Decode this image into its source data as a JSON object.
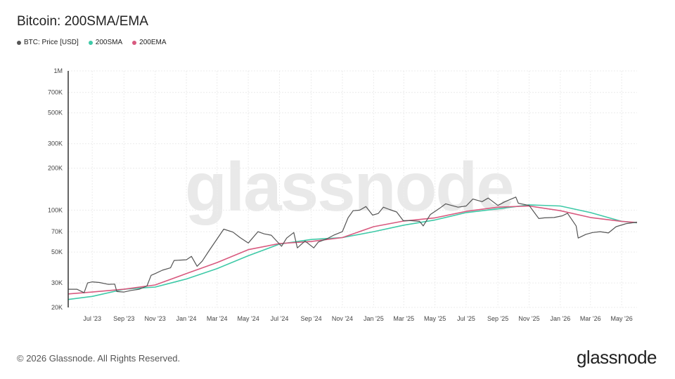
{
  "header": {
    "title": "Bitcoin: 200SMA/EMA"
  },
  "legend": [
    {
      "label": "BTC: Price [USD]",
      "color": "#555555"
    },
    {
      "label": "200SMA",
      "color": "#3ec9a7"
    },
    {
      "label": "200EMA",
      "color": "#d85a7f"
    }
  ],
  "watermark": "glassnode",
  "footer": {
    "copyright": "© 2026 Glassnode. All Rights Reserved.",
    "brand": "glassnode"
  },
  "chart_data": {
    "type": "line",
    "title": "Bitcoin: 200SMA/EMA",
    "y_scale": "log",
    "ylim": [
      20000,
      1000000
    ],
    "x_range": [
      "2023-05-15",
      "2026-05-31"
    ],
    "grid": true,
    "y_ticks": [
      {
        "value": 20000,
        "label": "20K"
      },
      {
        "value": 30000,
        "label": "30K"
      },
      {
        "value": 50000,
        "label": "50K"
      },
      {
        "value": 70000,
        "label": "70K"
      },
      {
        "value": 100000,
        "label": "100K"
      },
      {
        "value": 200000,
        "label": "200K"
      },
      {
        "value": 300000,
        "label": "300K"
      },
      {
        "value": 500000,
        "label": "500K"
      },
      {
        "value": 700000,
        "label": "700K"
      },
      {
        "value": 1000000,
        "label": "1M"
      }
    ],
    "x_ticks": [
      {
        "date": "2023-07-01",
        "label": "Jul '23"
      },
      {
        "date": "2023-09-01",
        "label": "Sep '23"
      },
      {
        "date": "2023-11-01",
        "label": "Nov '23"
      },
      {
        "date": "2024-01-01",
        "label": "Jan '24"
      },
      {
        "date": "2024-03-01",
        "label": "Mar '24"
      },
      {
        "date": "2024-05-01",
        "label": "May '24"
      },
      {
        "date": "2024-07-01",
        "label": "Jul '24"
      },
      {
        "date": "2024-09-01",
        "label": "Sep '24"
      },
      {
        "date": "2024-11-01",
        "label": "Nov '24"
      },
      {
        "date": "2025-01-01",
        "label": "Jan '25"
      },
      {
        "date": "2025-03-01",
        "label": "Mar '25"
      },
      {
        "date": "2025-05-01",
        "label": "May '25"
      },
      {
        "date": "2025-07-01",
        "label": "Jul '25"
      },
      {
        "date": "2025-09-01",
        "label": "Sep '25"
      },
      {
        "date": "2025-11-01",
        "label": "Nov '25"
      },
      {
        "date": "2026-01-01",
        "label": "Jan '26"
      },
      {
        "date": "2026-03-01",
        "label": "Mar '26"
      },
      {
        "date": "2026-05-01",
        "label": "May '26"
      }
    ],
    "series": [
      {
        "name": "BTC: Price [USD]",
        "color": "#555555",
        "points": [
          [
            "2023-05-15",
            27000
          ],
          [
            "2023-06-01",
            27000
          ],
          [
            "2023-06-15",
            25500
          ],
          [
            "2023-06-22",
            30000
          ],
          [
            "2023-07-01",
            30500
          ],
          [
            "2023-07-15",
            30200
          ],
          [
            "2023-08-01",
            29300
          ],
          [
            "2023-08-14",
            29400
          ],
          [
            "2023-08-18",
            26000
          ],
          [
            "2023-09-01",
            25800
          ],
          [
            "2023-09-15",
            26500
          ],
          [
            "2023-10-01",
            27000
          ],
          [
            "2023-10-16",
            28500
          ],
          [
            "2023-10-24",
            34000
          ],
          [
            "2023-11-01",
            35000
          ],
          [
            "2023-11-15",
            37000
          ],
          [
            "2023-12-01",
            38500
          ],
          [
            "2023-12-08",
            43500
          ],
          [
            "2024-01-01",
            44000
          ],
          [
            "2024-01-11",
            46500
          ],
          [
            "2024-01-22",
            39500
          ],
          [
            "2024-02-01",
            43000
          ],
          [
            "2024-02-15",
            51500
          ],
          [
            "2024-03-01",
            62000
          ],
          [
            "2024-03-14",
            73000
          ],
          [
            "2024-04-01",
            69500
          ],
          [
            "2024-04-15",
            63500
          ],
          [
            "2024-05-01",
            58000
          ],
          [
            "2024-05-20",
            70000
          ],
          [
            "2024-06-01",
            67500
          ],
          [
            "2024-06-15",
            66000
          ],
          [
            "2024-07-05",
            55000
          ],
          [
            "2024-07-15",
            63000
          ],
          [
            "2024-07-29",
            69000
          ],
          [
            "2024-08-05",
            53500
          ],
          [
            "2024-08-20",
            60000
          ],
          [
            "2024-09-06",
            53500
          ],
          [
            "2024-09-15",
            59000
          ],
          [
            "2024-10-01",
            62000
          ],
          [
            "2024-10-15",
            66000
          ],
          [
            "2024-11-01",
            70000
          ],
          [
            "2024-11-12",
            88000
          ],
          [
            "2024-11-22",
            99000
          ],
          [
            "2024-12-05",
            100000
          ],
          [
            "2024-12-17",
            106000
          ],
          [
            "2024-12-30",
            92000
          ],
          [
            "2025-01-10",
            94500
          ],
          [
            "2025-01-20",
            105000
          ],
          [
            "2025-02-01",
            101000
          ],
          [
            "2025-02-15",
            97000
          ],
          [
            "2025-02-28",
            84000
          ],
          [
            "2025-03-15",
            84000
          ],
          [
            "2025-04-01",
            83000
          ],
          [
            "2025-04-08",
            77000
          ],
          [
            "2025-04-22",
            93000
          ],
          [
            "2025-05-10",
            103000
          ],
          [
            "2025-05-22",
            111000
          ],
          [
            "2025-06-15",
            105000
          ],
          [
            "2025-07-01",
            107000
          ],
          [
            "2025-07-14",
            120000
          ],
          [
            "2025-08-01",
            115000
          ],
          [
            "2025-08-13",
            122000
          ],
          [
            "2025-09-01",
            108000
          ],
          [
            "2025-09-15",
            115000
          ],
          [
            "2025-10-06",
            124000
          ],
          [
            "2025-10-11",
            112000
          ],
          [
            "2025-11-01",
            108000
          ],
          [
            "2025-11-20",
            87000
          ],
          [
            "2025-12-01",
            88000
          ],
          [
            "2025-12-20",
            88500
          ],
          [
            "2026-01-05",
            91000
          ],
          [
            "2026-01-15",
            95000
          ],
          [
            "2026-02-01",
            77000
          ],
          [
            "2026-02-05",
            63000
          ],
          [
            "2026-02-20",
            67000
          ],
          [
            "2026-03-05",
            69000
          ],
          [
            "2026-03-20",
            70000
          ],
          [
            "2026-04-05",
            68500
          ],
          [
            "2026-04-20",
            76000
          ],
          [
            "2026-05-10",
            80000
          ],
          [
            "2026-05-31",
            82000
          ]
        ]
      },
      {
        "name": "200SMA",
        "color": "#3ec9a7",
        "points": [
          [
            "2023-05-15",
            22800
          ],
          [
            "2023-07-01",
            24000
          ],
          [
            "2023-09-01",
            27000
          ],
          [
            "2023-11-01",
            28000
          ],
          [
            "2024-01-01",
            32000
          ],
          [
            "2024-03-01",
            38000
          ],
          [
            "2024-05-01",
            47000
          ],
          [
            "2024-07-01",
            57000
          ],
          [
            "2024-09-01",
            61500
          ],
          [
            "2024-11-01",
            63500
          ],
          [
            "2025-01-01",
            70000
          ],
          [
            "2025-03-01",
            78000
          ],
          [
            "2025-05-01",
            85000
          ],
          [
            "2025-07-01",
            96000
          ],
          [
            "2025-09-01",
            102000
          ],
          [
            "2025-11-01",
            109000
          ],
          [
            "2026-01-01",
            107000
          ],
          [
            "2026-03-01",
            96000
          ],
          [
            "2026-05-01",
            83000
          ],
          [
            "2026-05-31",
            81000
          ]
        ]
      },
      {
        "name": "200EMA",
        "color": "#d85a7f",
        "points": [
          [
            "2023-05-15",
            25000
          ],
          [
            "2023-07-01",
            25800
          ],
          [
            "2023-09-01",
            27000
          ],
          [
            "2023-11-01",
            29000
          ],
          [
            "2024-01-01",
            35000
          ],
          [
            "2024-03-01",
            42000
          ],
          [
            "2024-05-01",
            52000
          ],
          [
            "2024-07-01",
            57500
          ],
          [
            "2024-09-01",
            59500
          ],
          [
            "2024-11-01",
            63500
          ],
          [
            "2025-01-01",
            76000
          ],
          [
            "2025-03-01",
            83500
          ],
          [
            "2025-05-01",
            88000
          ],
          [
            "2025-07-01",
            98000
          ],
          [
            "2025-09-01",
            105000
          ],
          [
            "2025-11-01",
            107000
          ],
          [
            "2026-01-01",
            99000
          ],
          [
            "2026-03-01",
            88500
          ],
          [
            "2026-05-01",
            83000
          ],
          [
            "2026-05-31",
            81500
          ]
        ]
      }
    ]
  }
}
